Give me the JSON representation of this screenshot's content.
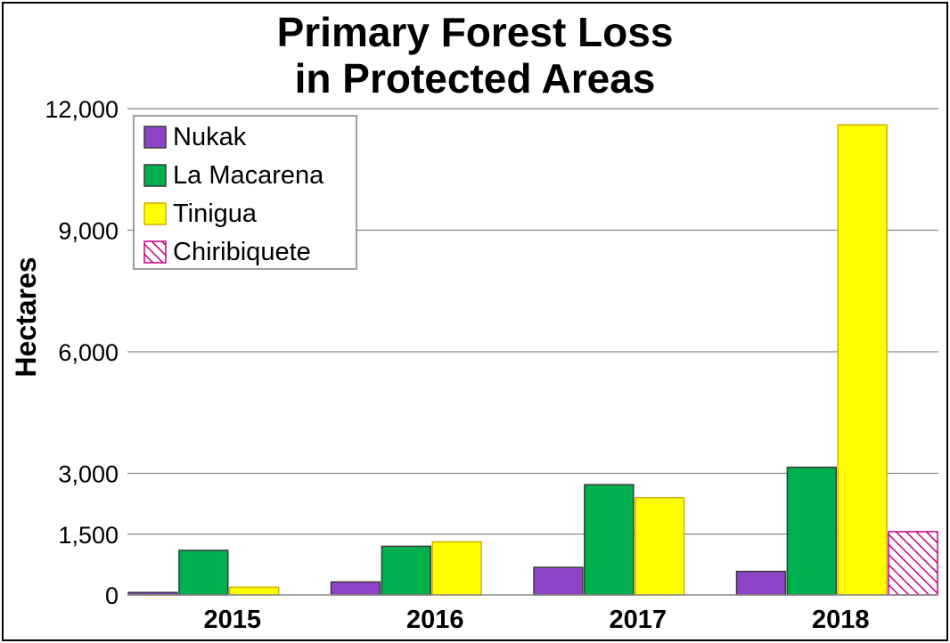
{
  "chart_data": {
    "type": "bar",
    "title_lines": [
      "Primary Forest Loss",
      "in Protected Areas"
    ],
    "ylabel": "Hectares",
    "xlabel": "",
    "categories": [
      "2015",
      "2016",
      "2017",
      "2018"
    ],
    "yticks": [
      0,
      1500,
      3000,
      6000,
      9000,
      12000
    ],
    "ytick_labels": [
      "0",
      "1,500",
      "3,000",
      "6,000",
      "9,000",
      "12,000"
    ],
    "ylim": [
      0,
      12000
    ],
    "grid": true,
    "legend_position": "top-left",
    "series": [
      {
        "name": "Nukak",
        "values": [
          60,
          320,
          680,
          580
        ],
        "color": "#8e44c9",
        "pattern": "solid"
      },
      {
        "name": "La Macarena",
        "values": [
          1100,
          1200,
          2720,
          3150
        ],
        "color": "#00b04f",
        "pattern": "solid"
      },
      {
        "name": "Tinigua",
        "values": [
          190,
          1310,
          2400,
          11600
        ],
        "color": "#ffff00",
        "pattern": "solid"
      },
      {
        "name": "Chiribiquete",
        "values": [
          null,
          null,
          null,
          1560
        ],
        "color": "#c8007a",
        "pattern": "hatched"
      }
    ]
  }
}
